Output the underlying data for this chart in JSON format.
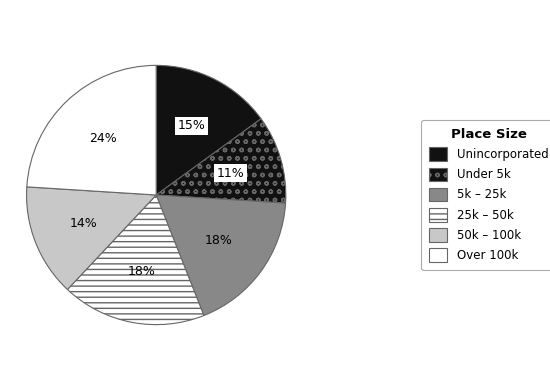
{
  "labels": [
    "Unincorporated",
    "Under 5k",
    "5k – 25k",
    "25k – 50k",
    "50k – 100k",
    "Over 100k"
  ],
  "values": [
    15,
    11,
    18,
    18,
    14,
    24
  ],
  "pct_labels": [
    "15%",
    "11%",
    "18%",
    "18%",
    "14%",
    "24%"
  ],
  "face_colors": [
    "#111111",
    "#111111",
    "#888888",
    "#ffffff",
    "#c8c8c8",
    "#ffffff"
  ],
  "hatch_patterns": [
    null,
    "oo",
    null,
    "---",
    null,
    null
  ],
  "hatch_colors": [
    "#111111",
    "#ffffff",
    "#888888",
    "#111111",
    "#c8c8c8",
    "#ffffff"
  ],
  "legend_title": "Place Size",
  "start_angle": 90,
  "background_color": "#ffffff",
  "edge_color": "#666666"
}
